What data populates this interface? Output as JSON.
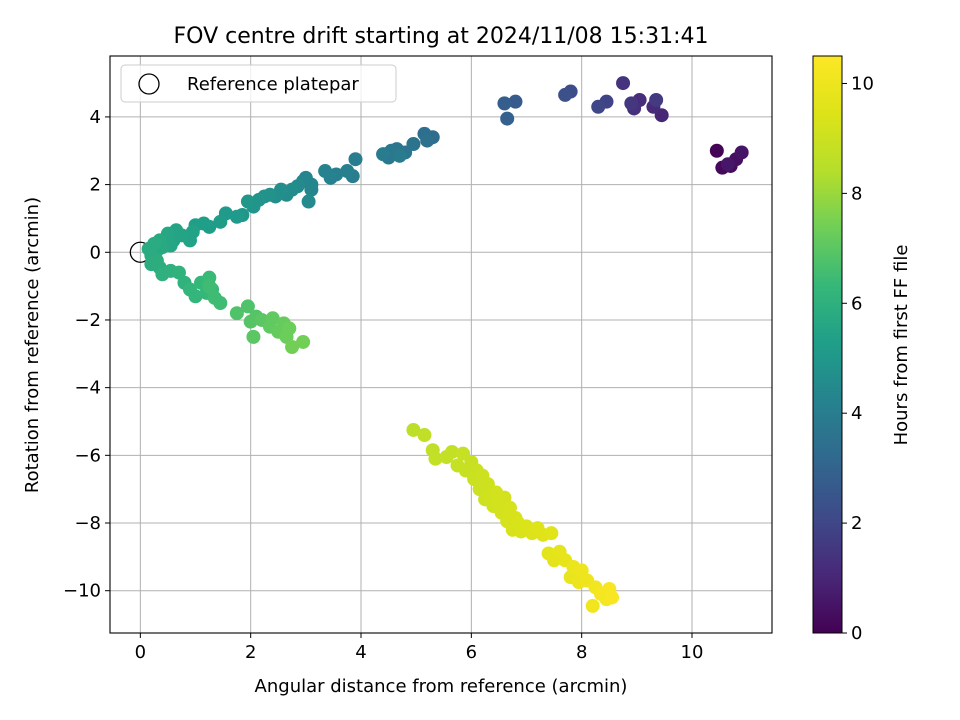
{
  "chart_data": {
    "type": "scatter",
    "title": "FOV centre drift starting at 2024/11/08 15:31:41",
    "xlabel": "Angular distance from reference (arcmin)",
    "ylabel": "Rotation from reference (arcmin)",
    "colorbar_label": "Hours from first FF file",
    "colormap": "viridis",
    "xlim": [
      -0.55,
      11.45
    ],
    "ylim": [
      -11.25,
      5.8
    ],
    "clim": [
      0,
      10.5
    ],
    "grid": true,
    "legend_position": "upper left",
    "x_ticks": [
      0,
      2,
      4,
      6,
      8,
      10
    ],
    "y_ticks": [
      -10,
      -8,
      -6,
      -4,
      -2,
      0,
      2,
      4
    ],
    "colorbar_ticks": [
      0,
      2,
      4,
      6,
      8,
      10
    ],
    "reference": {
      "name": "Reference platepar",
      "x": 0,
      "y": 0
    },
    "points": [
      [
        10.45,
        3.0,
        0.1
      ],
      [
        10.55,
        2.5,
        0.2
      ],
      [
        10.7,
        2.55,
        0.3
      ],
      [
        10.8,
        2.75,
        0.4
      ],
      [
        10.9,
        2.95,
        0.5
      ],
      [
        10.65,
        2.6,
        0.6
      ],
      [
        9.45,
        4.05,
        1.0
      ],
      [
        9.3,
        4.3,
        1.1
      ],
      [
        9.05,
        4.5,
        1.2
      ],
      [
        8.95,
        4.25,
        1.3
      ],
      [
        8.75,
        5.0,
        1.4
      ],
      [
        8.9,
        4.4,
        1.5
      ],
      [
        9.35,
        4.5,
        1.6
      ],
      [
        8.45,
        4.45,
        1.9
      ],
      [
        8.3,
        4.3,
        2.0
      ],
      [
        7.8,
        4.75,
        2.2
      ],
      [
        7.7,
        4.65,
        2.3
      ],
      [
        6.8,
        4.45,
        2.7
      ],
      [
        6.6,
        4.4,
        2.8
      ],
      [
        6.65,
        3.95,
        2.9
      ],
      [
        5.3,
        3.4,
        3.3
      ],
      [
        5.15,
        3.5,
        3.4
      ],
      [
        5.2,
        3.3,
        3.5
      ],
      [
        4.95,
        3.2,
        3.6
      ],
      [
        4.8,
        2.95,
        3.7
      ],
      [
        4.65,
        3.05,
        3.7
      ],
      [
        4.5,
        2.8,
        3.8
      ],
      [
        4.55,
        3.0,
        3.8
      ],
      [
        4.7,
        2.85,
        3.9
      ],
      [
        4.4,
        2.9,
        3.9
      ],
      [
        3.9,
        2.75,
        4.0
      ],
      [
        3.85,
        2.25,
        4.0
      ],
      [
        3.75,
        2.4,
        4.1
      ],
      [
        3.55,
        2.3,
        4.1
      ],
      [
        3.45,
        2.2,
        4.2
      ],
      [
        3.35,
        2.4,
        4.2
      ],
      [
        3.1,
        2.0,
        4.3
      ],
      [
        3.0,
        2.2,
        4.3
      ],
      [
        3.1,
        1.85,
        4.4
      ],
      [
        2.95,
        2.1,
        4.4
      ],
      [
        2.85,
        1.95,
        4.5
      ],
      [
        3.05,
        1.5,
        4.5
      ],
      [
        2.75,
        1.85,
        4.6
      ],
      [
        2.65,
        1.7,
        4.6
      ],
      [
        2.55,
        1.85,
        4.7
      ],
      [
        2.45,
        1.65,
        4.7
      ],
      [
        2.35,
        1.7,
        4.8
      ],
      [
        2.25,
        1.65,
        4.8
      ],
      [
        2.15,
        1.55,
        4.9
      ],
      [
        2.05,
        1.35,
        4.9
      ],
      [
        1.95,
        1.5,
        5.0
      ],
      [
        1.85,
        1.1,
        5.0
      ],
      [
        1.75,
        1.05,
        5.1
      ],
      [
        1.55,
        1.15,
        5.1
      ],
      [
        1.45,
        0.9,
        5.2
      ],
      [
        1.25,
        0.75,
        5.2
      ],
      [
        1.15,
        0.85,
        5.3
      ],
      [
        1.0,
        0.8,
        5.3
      ],
      [
        0.95,
        0.6,
        5.4
      ],
      [
        0.9,
        0.35,
        5.4
      ],
      [
        0.75,
        0.5,
        5.5
      ],
      [
        0.65,
        0.65,
        5.5
      ],
      [
        0.6,
        0.35,
        5.5
      ],
      [
        0.55,
        0.2,
        5.6
      ],
      [
        0.5,
        0.55,
        5.6
      ],
      [
        0.45,
        0.4,
        5.6
      ],
      [
        0.4,
        0.15,
        5.7
      ],
      [
        0.35,
        0.35,
        5.7
      ],
      [
        0.3,
        0.05,
        5.7
      ],
      [
        0.25,
        0.25,
        5.8
      ],
      [
        0.2,
        -0.1,
        5.8
      ],
      [
        0.15,
        0.1,
        5.8
      ],
      [
        0.3,
        -0.25,
        5.9
      ],
      [
        0.2,
        -0.35,
        5.9
      ],
      [
        0.35,
        -0.45,
        5.9
      ],
      [
        0.4,
        -0.65,
        6.0
      ],
      [
        0.55,
        -0.55,
        6.0
      ],
      [
        0.7,
        -0.6,
        6.1
      ],
      [
        0.8,
        -0.9,
        6.1
      ],
      [
        0.9,
        -1.1,
        6.2
      ],
      [
        1.0,
        -1.3,
        6.2
      ],
      [
        1.1,
        -0.9,
        6.3
      ],
      [
        1.2,
        -1.2,
        6.3
      ],
      [
        1.25,
        -0.75,
        6.4
      ],
      [
        1.3,
        -1.1,
        6.4
      ],
      [
        1.35,
        -1.35,
        6.5
      ],
      [
        1.45,
        -1.5,
        6.5
      ],
      [
        1.25,
        -1.0,
        6.5
      ],
      [
        1.75,
        -1.8,
        6.8
      ],
      [
        1.95,
        -1.6,
        6.8
      ],
      [
        2.0,
        -2.05,
        6.9
      ],
      [
        2.1,
        -1.9,
        6.9
      ],
      [
        2.05,
        -2.5,
        7.0
      ],
      [
        2.2,
        -2.0,
        7.0
      ],
      [
        2.35,
        -2.2,
        7.1
      ],
      [
        2.4,
        -1.95,
        7.1
      ],
      [
        2.5,
        -2.35,
        7.2
      ],
      [
        2.6,
        -2.1,
        7.2
      ],
      [
        2.65,
        -2.5,
        7.3
      ],
      [
        2.7,
        -2.25,
        7.3
      ],
      [
        2.75,
        -2.8,
        7.4
      ],
      [
        2.95,
        -2.65,
        7.4
      ],
      [
        4.95,
        -5.25,
        8.6
      ],
      [
        5.15,
        -5.4,
        8.7
      ],
      [
        5.3,
        -5.85,
        8.7
      ],
      [
        5.35,
        -6.1,
        8.75
      ],
      [
        5.55,
        -6.05,
        8.8
      ],
      [
        5.65,
        -5.9,
        8.8
      ],
      [
        5.75,
        -6.3,
        8.85
      ],
      [
        5.85,
        -5.95,
        8.85
      ],
      [
        5.9,
        -6.45,
        8.9
      ],
      [
        6.0,
        -6.2,
        8.9
      ],
      [
        6.05,
        -6.7,
        8.95
      ],
      [
        6.1,
        -6.45,
        8.95
      ],
      [
        6.15,
        -7.0,
        9.0
      ],
      [
        6.2,
        -6.6,
        9.0
      ],
      [
        6.25,
        -7.3,
        9.05
      ],
      [
        6.3,
        -6.85,
        9.05
      ],
      [
        6.35,
        -7.2,
        9.1
      ],
      [
        6.4,
        -7.5,
        9.1
      ],
      [
        6.45,
        -7.1,
        9.15
      ],
      [
        6.5,
        -7.4,
        9.15
      ],
      [
        6.55,
        -7.7,
        9.2
      ],
      [
        6.6,
        -7.25,
        9.2
      ],
      [
        6.65,
        -7.95,
        9.25
      ],
      [
        6.7,
        -7.55,
        9.25
      ],
      [
        6.75,
        -8.2,
        9.3
      ],
      [
        6.8,
        -7.85,
        9.3
      ],
      [
        6.85,
        -8.0,
        9.35
      ],
      [
        6.9,
        -8.25,
        9.35
      ],
      [
        7.0,
        -8.1,
        9.4
      ],
      [
        7.1,
        -8.3,
        9.45
      ],
      [
        7.2,
        -8.15,
        9.5
      ],
      [
        7.3,
        -8.35,
        9.55
      ],
      [
        7.45,
        -8.3,
        9.6
      ],
      [
        7.4,
        -8.9,
        9.65
      ],
      [
        7.5,
        -9.1,
        9.7
      ],
      [
        7.6,
        -8.85,
        9.75
      ],
      [
        7.7,
        -9.1,
        9.8
      ],
      [
        7.8,
        -9.6,
        9.85
      ],
      [
        7.85,
        -9.3,
        9.9
      ],
      [
        7.95,
        -9.75,
        9.95
      ],
      [
        8.0,
        -9.4,
        10.0
      ],
      [
        8.1,
        -9.7,
        10.05
      ],
      [
        8.2,
        -10.45,
        10.1
      ],
      [
        8.25,
        -9.9,
        10.15
      ],
      [
        8.35,
        -10.1,
        10.2
      ],
      [
        8.45,
        -10.25,
        10.25
      ],
      [
        8.5,
        -9.95,
        10.3
      ],
      [
        8.55,
        -10.2,
        10.35
      ]
    ]
  }
}
